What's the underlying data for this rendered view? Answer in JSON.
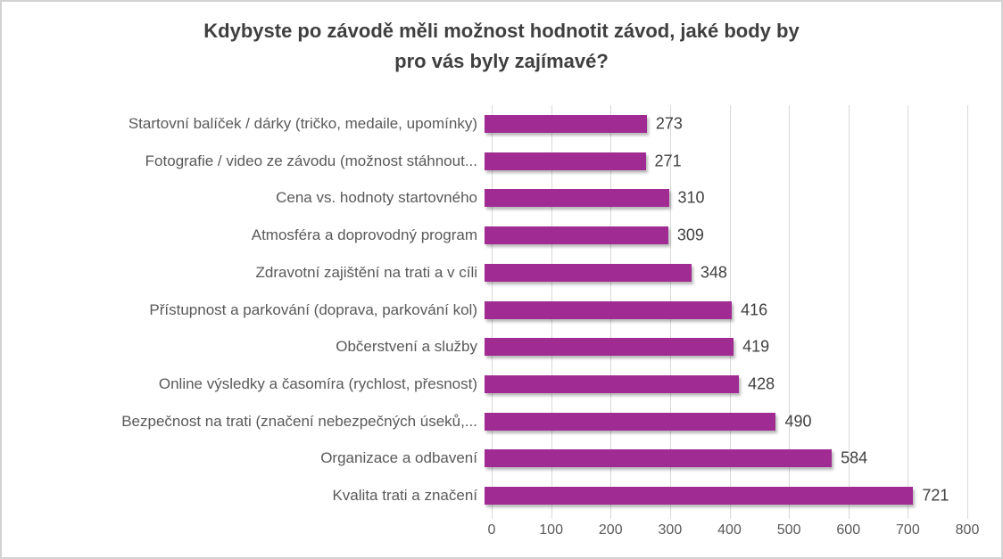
{
  "chart": {
    "title": "Kdybyste po závodě měli možnost hodnotit závod, jaké body by pro vás byly zajímavé?",
    "title_lines": [
      "Kdybyste po závodě měli možnost hodnotit závod, jaké body by",
      "pro vás byly zajímavé?"
    ]
  },
  "chart_data": {
    "type": "bar",
    "orientation": "horizontal",
    "title": "Kdybyste po závodě měli možnost hodnotit závod, jaké body by pro vás byly zajímavé?",
    "order": "top-to-bottom",
    "categories": [
      "Startovní balíček / dárky (tričko, medaile, upomínky)",
      "Fotografie / video ze závodu (možnost stáhnout...",
      "Cena vs. hodnoty startovného",
      "Atmosféra a doprovodný program",
      "Zdravotní zajištění na trati a v cíli",
      "Přístupnost a parkování (doprava, parkování kol)",
      "Občerstvení a služby",
      "Online výsledky a časomíra (rychlost, přesnost)",
      "Bezpečnost na trati (značení nebezpečných úseků,...",
      "Organizace a odbavení",
      "Kvalita trati a značení"
    ],
    "values": [
      273,
      271,
      310,
      309,
      348,
      416,
      419,
      428,
      490,
      584,
      721
    ],
    "xlabel": "",
    "ylabel": "",
    "xlim": [
      0,
      800
    ],
    "x_ticks": [
      0,
      100,
      200,
      300,
      400,
      500,
      600,
      700,
      800
    ],
    "grid": true,
    "data_labels": true,
    "legend": false
  },
  "colors": {
    "bar": "#a02b93",
    "gridline": "#d9d9d9",
    "title_text": "#3f3f3f",
    "category_label_text": "#595959",
    "value_label_text": "#404040",
    "tick_label_text": "#595959",
    "frame_border": "#d2d2d2",
    "background": "#ffffff"
  }
}
